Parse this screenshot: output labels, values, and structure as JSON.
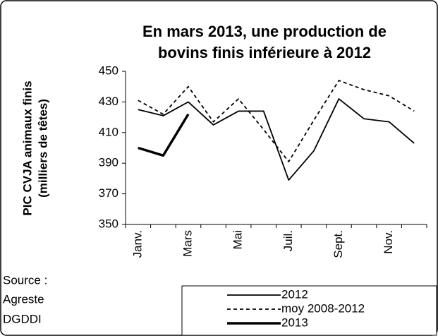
{
  "chart_data": {
    "type": "line",
    "title": [
      "En mars 2013, une production de",
      "bovins finis inférieure à 2012"
    ],
    "y_label": [
      "PIC CVJA animaux finis",
      "(milliers de têtes)"
    ],
    "source": [
      "Source :",
      "Agreste",
      "DGDDI"
    ],
    "categories": [
      "Janv.",
      null,
      "Mars",
      null,
      "Mai",
      null,
      "Juil.",
      null,
      "Sept.",
      null,
      "Nov.",
      null
    ],
    "series": [
      {
        "name": "2012",
        "color": "#000000",
        "style": "solid",
        "values": [
          425,
          421,
          430,
          415,
          424,
          424,
          379,
          398,
          432,
          419,
          417,
          403
        ]
      },
      {
        "name": "moy 2008-2012",
        "color": "#000000",
        "style": "dashed",
        "values": [
          431,
          422,
          440,
          417,
          432,
          412,
          391,
          418,
          444,
          438,
          434,
          424
        ]
      },
      {
        "name": "2013",
        "color": "#000000",
        "style": "bold",
        "values": [
          400,
          395,
          422,
          null,
          null,
          null,
          null,
          null,
          null,
          null,
          null,
          null
        ]
      }
    ],
    "ylim": [
      350,
      450
    ],
    "yticks": [
      350,
      370,
      390,
      410,
      430,
      450
    ],
    "grid": false
  }
}
